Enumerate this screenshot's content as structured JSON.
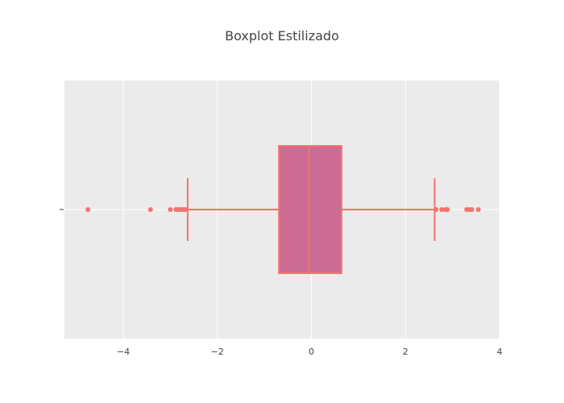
{
  "chart_data": {
    "type": "box",
    "title": "Boxplot Estilizado",
    "xlabel": "",
    "ylabel": "",
    "xlim": [
      -5.25,
      4
    ],
    "x_ticks": [
      -4,
      -2,
      0,
      2,
      4
    ],
    "x_tick_labels": [
      "−4",
      "−2",
      "0",
      "2",
      "4"
    ],
    "grid": true,
    "orientation": "horizontal",
    "box": {
      "lower_fence": -2.63,
      "q1": -0.69,
      "median": -0.05,
      "q3": 0.64,
      "upper_fence": 2.62
    },
    "outliers": [
      -4.75,
      -3.42,
      -3.0,
      -2.88,
      -2.83,
      -2.79,
      -2.75,
      -2.72,
      -2.68,
      2.65,
      2.77,
      2.85,
      2.89,
      3.3,
      3.36,
      3.41,
      3.55
    ],
    "colors": {
      "plot_background": "#ebebeb",
      "grid": "#ffffff",
      "box_fill": "#cc6b94",
      "line": "#f4736c",
      "text": "#444444"
    }
  }
}
